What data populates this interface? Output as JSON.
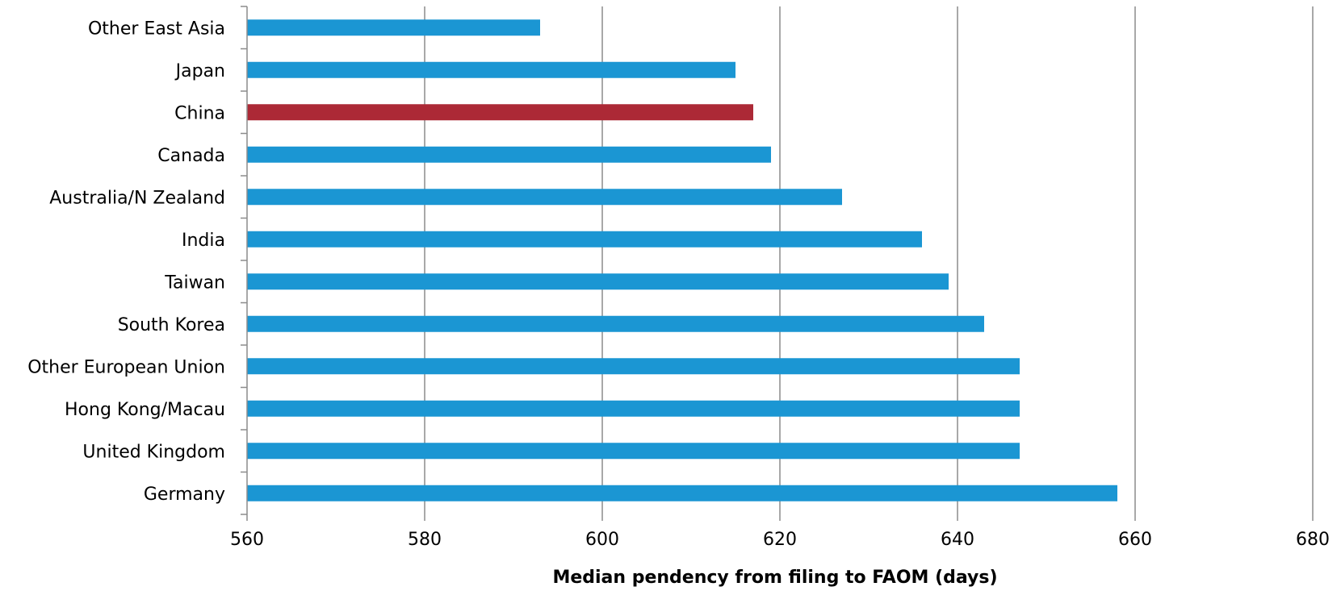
{
  "chart_data": {
    "type": "bar",
    "orientation": "horizontal",
    "title": "",
    "xlabel": "Median pendency from filing to FAOM (days)",
    "ylabel": "",
    "xlim": [
      560,
      680
    ],
    "x_ticks": [
      560,
      580,
      600,
      620,
      640,
      660,
      680
    ],
    "grid": "vertical",
    "categories": [
      "Other East Asia",
      "Japan",
      "China",
      "Canada",
      "Australia/N Zealand",
      "India",
      "Taiwan",
      "South Korea",
      "Other European Union",
      "Hong Kong/Macau",
      "United Kingdom",
      "Germany"
    ],
    "values": [
      593,
      615,
      617,
      619,
      627,
      636,
      639,
      643,
      647,
      647,
      647,
      658
    ],
    "colors": {
      "default": "#1b96d3",
      "highlight": "#ac2936",
      "grid": "#8c8c8c"
    },
    "highlight": "China"
  }
}
